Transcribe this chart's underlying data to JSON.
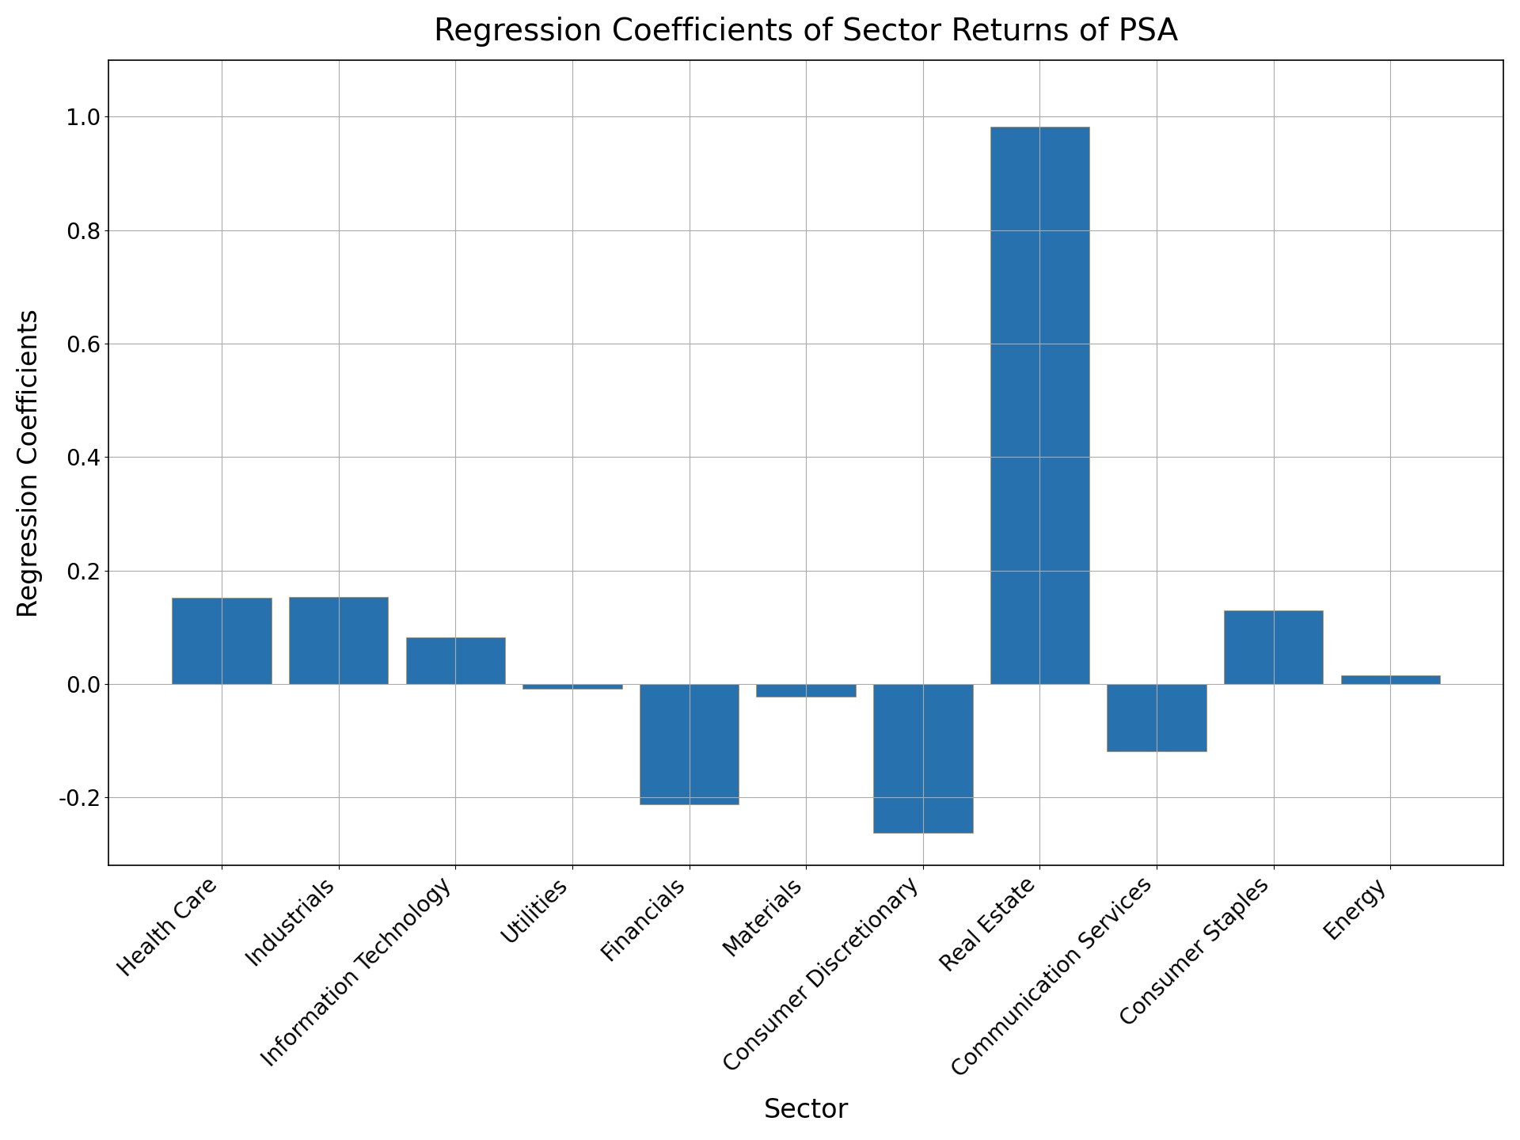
{
  "categories": [
    "Health Care",
    "Industrials",
    "Information Technology",
    "Utilities",
    "Financials",
    "Materials",
    "Consumer Discretionary",
    "Real Estate",
    "Communication Services",
    "Consumer Staples",
    "Energy"
  ],
  "values": [
    0.152,
    0.153,
    0.082,
    -0.008,
    -0.212,
    -0.022,
    -0.262,
    0.982,
    -0.118,
    0.13,
    0.016
  ],
  "bar_color": "#2771ae",
  "bar_edgecolor": "#c8883b",
  "title": "Regression Coefficients of Sector Returns of PSA",
  "xlabel": "Sector",
  "ylabel": "Regression Coefficients",
  "ylim": [
    -0.32,
    1.1
  ],
  "yticks": [
    -0.2,
    0.0,
    0.2,
    0.4,
    0.6,
    0.8,
    1.0
  ],
  "title_fontsize": 28,
  "label_fontsize": 24,
  "tick_fontsize": 20,
  "background_color": "#ffffff",
  "grid_color": "#aaaaaa",
  "bar_width": 0.85
}
